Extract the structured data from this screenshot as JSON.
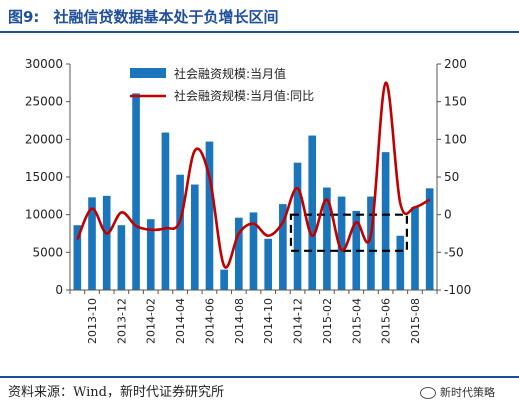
{
  "header": {
    "figure_no": "图9:",
    "title": "社融信贷数据基本处于负增长区间"
  },
  "footer": {
    "source": "资料来源：Wind，新时代证券研究所",
    "brand": "新时代策略"
  },
  "colors": {
    "bar": "#1b75bb",
    "line": "#c00000",
    "header": "#1f4e9a",
    "box": "#000000"
  },
  "chart_data": {
    "type": "bar+line",
    "legend": {
      "placement": "top-center",
      "bar_label": "社会融资规模:当月值",
      "line_label": "社会融资规模:当月值:同比"
    },
    "left_axis": {
      "ylim": [
        0,
        30000
      ],
      "ticks": [
        "0",
        "5000",
        "10000",
        "15000",
        "20000",
        "25000",
        "30000"
      ]
    },
    "right_axis": {
      "ylim": [
        -100,
        200
      ],
      "ticks": [
        "-100",
        "-50",
        "0",
        "50",
        "100",
        "150",
        "200"
      ]
    },
    "x_tick_labels": [
      "2013-10",
      "2013-12",
      "2014-02",
      "2014-04",
      "2014-06",
      "2014-08",
      "2014-10",
      "2014-12",
      "2015-02",
      "2015-04",
      "2015-06",
      "2015-08"
    ],
    "categories": [
      "2013-09",
      "2013-10",
      "2013-11",
      "2013-12",
      "2014-01",
      "2014-02",
      "2014-03",
      "2014-04",
      "2014-05",
      "2014-06",
      "2014-07",
      "2014-08",
      "2014-09",
      "2014-10",
      "2014-11",
      "2014-12",
      "2015-01",
      "2015-02",
      "2015-03",
      "2015-04",
      "2015-05",
      "2015-06",
      "2015-07",
      "2015-08",
      "2015-09"
    ],
    "series": [
      {
        "name": "社会融资规模:当月值",
        "kind": "bar",
        "axis": "left",
        "values": [
          8600,
          12300,
          12500,
          8600,
          26100,
          9400,
          20900,
          15300,
          14000,
          19700,
          2700,
          9600,
          10300,
          6800,
          11400,
          16900,
          20500,
          13600,
          12400,
          10500,
          12400,
          18300,
          7200,
          11000,
          13500
        ]
      },
      {
        "name": "社会融资规模:当月值:同比",
        "kind": "line",
        "axis": "right",
        "values": [
          -33,
          8,
          -25,
          3,
          -15,
          -20,
          -18,
          -8,
          85,
          50,
          -68,
          -25,
          -12,
          -28,
          -10,
          35,
          -28,
          20,
          -47,
          -10,
          -27,
          175,
          15,
          10,
          20
        ]
      }
    ],
    "annotation": {
      "type": "dashed-rectangle",
      "from_category": "2014-12",
      "to_category": "2015-07",
      "right_axis_range": [
        -48,
        0
      ]
    }
  }
}
